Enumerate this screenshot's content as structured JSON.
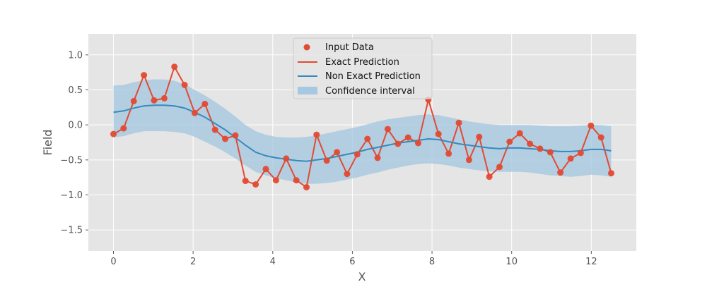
{
  "chart_data": {
    "type": "line",
    "xlabel": "X",
    "ylabel": "Field",
    "xlim": [
      -0.63,
      13.13
    ],
    "ylim": [
      -1.8,
      1.3
    ],
    "xticks": [
      0,
      2,
      4,
      6,
      8,
      10,
      12
    ],
    "xtick_labels": [
      "0",
      "2",
      "4",
      "6",
      "8",
      "10",
      "12"
    ],
    "yticks": [
      -1.5,
      -1.0,
      -0.5,
      0.0,
      0.5,
      1.0
    ],
    "ytick_labels": [
      "−1.5",
      "−1.0",
      "−0.5",
      "0.0",
      "0.5",
      "1.0"
    ],
    "grid": true,
    "legend_position": "top-center",
    "legend": [
      {
        "label": "Input Data",
        "kind": "marker"
      },
      {
        "label": "Exact Prediction",
        "kind": "line"
      },
      {
        "label": "Non Exact Prediction",
        "kind": "line"
      },
      {
        "label": "Confidence interval",
        "kind": "patch"
      }
    ],
    "colors": {
      "input": "#e24a33",
      "exact": "#e24a33",
      "nonexact": "#348abd",
      "band": "#a6c8e0",
      "background": "#e5e5e5",
      "grid": "#ffffff",
      "text": "#555555"
    },
    "x": [
      0,
      0.255,
      0.51,
      0.765,
      1.02,
      1.276,
      1.531,
      1.786,
      2.041,
      2.296,
      2.551,
      2.806,
      3.061,
      3.316,
      3.571,
      3.827,
      4.082,
      4.337,
      4.592,
      4.847,
      5.102,
      5.357,
      5.612,
      5.867,
      6.122,
      6.378,
      6.633,
      6.888,
      7.143,
      7.398,
      7.653,
      7.908,
      8.163,
      8.418,
      8.673,
      8.929,
      9.184,
      9.439,
      9.694,
      9.949,
      10.204,
      10.459,
      10.714,
      10.969,
      11.224,
      11.48,
      11.735,
      11.99,
      12.245,
      12.5
    ],
    "input_data": [
      -0.13,
      -0.05,
      0.34,
      0.71,
      0.35,
      0.38,
      0.83,
      0.57,
      0.17,
      0.3,
      -0.07,
      -0.2,
      -0.15,
      -0.8,
      -0.85,
      -0.63,
      -0.79,
      -0.48,
      -0.79,
      -0.89,
      -0.14,
      -0.51,
      -0.39,
      -0.7,
      -0.42,
      -0.2,
      -0.47,
      -0.06,
      -0.27,
      -0.18,
      -0.26,
      0.36,
      -0.13,
      -0.41,
      0.03,
      -0.5,
      -0.17,
      -0.74,
      -0.6,
      -0.24,
      -0.12,
      -0.27,
      -0.34,
      -0.39,
      -0.68,
      -0.48,
      -0.4,
      -0.01,
      -0.18,
      -0.69
    ],
    "non_exact_prediction": [
      0.18,
      0.2,
      0.24,
      0.27,
      0.28,
      0.28,
      0.27,
      0.24,
      0.18,
      0.11,
      0.02,
      -0.07,
      -0.18,
      -0.29,
      -0.39,
      -0.44,
      -0.47,
      -0.49,
      -0.51,
      -0.52,
      -0.5,
      -0.48,
      -0.45,
      -0.42,
      -0.39,
      -0.35,
      -0.32,
      -0.29,
      -0.26,
      -0.24,
      -0.22,
      -0.2,
      -0.21,
      -0.24,
      -0.27,
      -0.29,
      -0.31,
      -0.33,
      -0.34,
      -0.33,
      -0.33,
      -0.34,
      -0.35,
      -0.37,
      -0.38,
      -0.38,
      -0.37,
      -0.35,
      -0.35,
      -0.37
    ],
    "confidence_upper": [
      0.56,
      0.57,
      0.61,
      0.64,
      0.65,
      0.65,
      0.63,
      0.58,
      0.5,
      0.42,
      0.33,
      0.23,
      0.12,
      0.0,
      -0.09,
      -0.14,
      -0.17,
      -0.18,
      -0.18,
      -0.17,
      -0.15,
      -0.12,
      -0.09,
      -0.06,
      -0.03,
      0.01,
      0.05,
      0.08,
      0.1,
      0.12,
      0.14,
      0.15,
      0.14,
      0.11,
      0.08,
      0.05,
      0.03,
      0.01,
      0.0,
      0.0,
      0.0,
      0.0,
      -0.01,
      -0.02,
      -0.02,
      -0.02,
      -0.01,
      0.0,
      0.0,
      -0.02
    ],
    "confidence_lower": [
      -0.18,
      -0.16,
      -0.12,
      -0.09,
      -0.09,
      -0.09,
      -0.1,
      -0.12,
      -0.17,
      -0.24,
      -0.31,
      -0.39,
      -0.48,
      -0.58,
      -0.67,
      -0.72,
      -0.76,
      -0.79,
      -0.82,
      -0.84,
      -0.84,
      -0.83,
      -0.81,
      -0.78,
      -0.75,
      -0.71,
      -0.68,
      -0.64,
      -0.61,
      -0.58,
      -0.56,
      -0.55,
      -0.56,
      -0.58,
      -0.61,
      -0.63,
      -0.65,
      -0.66,
      -0.67,
      -0.67,
      -0.67,
      -0.68,
      -0.7,
      -0.72,
      -0.73,
      -0.74,
      -0.73,
      -0.71,
      -0.72,
      -0.74
    ]
  }
}
